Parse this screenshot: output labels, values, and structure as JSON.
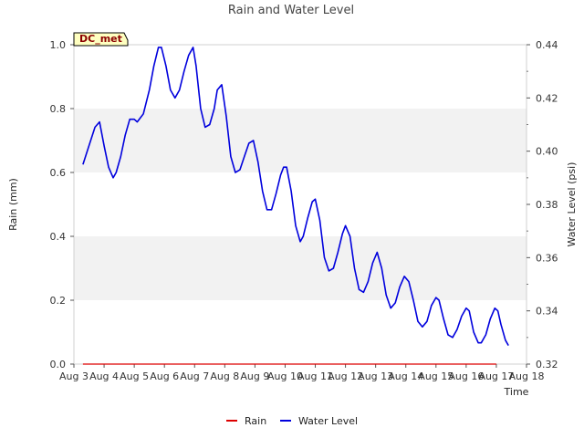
{
  "chart_data": {
    "type": "line",
    "title": "Rain and Water Level",
    "station_label": "DC_met",
    "xlabel": "Time",
    "ylabel_left": "Rain (mm)",
    "ylabel_right": "Water Level (psi)",
    "x_ticks": [
      "Aug 3",
      "Aug 4",
      "Aug 5",
      "Aug 6",
      "Aug 7",
      "Aug 8",
      "Aug 9",
      "Aug 10",
      "Aug 11",
      "Aug 12",
      "Aug 13",
      "Aug 14",
      "Aug 15",
      "Aug 16",
      "Aug 17",
      "Aug 18"
    ],
    "ylim_left": [
      0.0,
      1.0
    ],
    "ylim_right": [
      0.32,
      0.44
    ],
    "yticks_left": [
      "0.0",
      "0.2",
      "0.4",
      "0.6",
      "0.8",
      "1.0"
    ],
    "yticks_right": [
      "0.32",
      "0.34",
      "0.36",
      "0.38",
      "0.40",
      "0.42",
      "0.44"
    ],
    "legend_position": "bottom-center",
    "series": [
      {
        "name": "Rain",
        "color": "#dd0000",
        "axis": "left",
        "points": [
          [
            3.3,
            0.0
          ],
          [
            17.0,
            0.0
          ]
        ]
      },
      {
        "name": "Water Level",
        "color": "#0000dd",
        "axis": "right",
        "points": [
          [
            3.3,
            0.395
          ],
          [
            3.5,
            0.402
          ],
          [
            3.7,
            0.409
          ],
          [
            3.85,
            0.411
          ],
          [
            4.0,
            0.402
          ],
          [
            4.15,
            0.394
          ],
          [
            4.3,
            0.39
          ],
          [
            4.4,
            0.392
          ],
          [
            4.55,
            0.398
          ],
          [
            4.7,
            0.406
          ],
          [
            4.85,
            0.412
          ],
          [
            5.0,
            0.412
          ],
          [
            5.1,
            0.411
          ],
          [
            5.3,
            0.414
          ],
          [
            5.5,
            0.423
          ],
          [
            5.65,
            0.432
          ],
          [
            5.8,
            0.439
          ],
          [
            5.9,
            0.439
          ],
          [
            6.05,
            0.432
          ],
          [
            6.2,
            0.423
          ],
          [
            6.35,
            0.42
          ],
          [
            6.5,
            0.423
          ],
          [
            6.65,
            0.43
          ],
          [
            6.8,
            0.436
          ],
          [
            6.95,
            0.439
          ],
          [
            7.05,
            0.432
          ],
          [
            7.2,
            0.416
          ],
          [
            7.35,
            0.409
          ],
          [
            7.5,
            0.41
          ],
          [
            7.65,
            0.416
          ],
          [
            7.75,
            0.423
          ],
          [
            7.9,
            0.425
          ],
          [
            8.05,
            0.413
          ],
          [
            8.2,
            0.398
          ],
          [
            8.35,
            0.392
          ],
          [
            8.5,
            0.393
          ],
          [
            8.65,
            0.398
          ],
          [
            8.8,
            0.403
          ],
          [
            8.95,
            0.404
          ],
          [
            9.1,
            0.396
          ],
          [
            9.25,
            0.385
          ],
          [
            9.4,
            0.378
          ],
          [
            9.55,
            0.378
          ],
          [
            9.7,
            0.384
          ],
          [
            9.85,
            0.391
          ],
          [
            9.95,
            0.394
          ],
          [
            10.05,
            0.394
          ],
          [
            10.2,
            0.385
          ],
          [
            10.35,
            0.372
          ],
          [
            10.5,
            0.366
          ],
          [
            10.6,
            0.368
          ],
          [
            10.75,
            0.375
          ],
          [
            10.9,
            0.381
          ],
          [
            11.0,
            0.382
          ],
          [
            11.15,
            0.374
          ],
          [
            11.3,
            0.36
          ],
          [
            11.45,
            0.355
          ],
          [
            11.6,
            0.356
          ],
          [
            11.75,
            0.362
          ],
          [
            11.9,
            0.369
          ],
          [
            12.0,
            0.372
          ],
          [
            12.15,
            0.368
          ],
          [
            12.3,
            0.356
          ],
          [
            12.45,
            0.348
          ],
          [
            12.6,
            0.347
          ],
          [
            12.75,
            0.351
          ],
          [
            12.9,
            0.358
          ],
          [
            13.05,
            0.362
          ],
          [
            13.2,
            0.356
          ],
          [
            13.35,
            0.346
          ],
          [
            13.5,
            0.341
          ],
          [
            13.65,
            0.343
          ],
          [
            13.8,
            0.349
          ],
          [
            13.95,
            0.353
          ],
          [
            14.1,
            0.351
          ],
          [
            14.25,
            0.344
          ],
          [
            14.4,
            0.336
          ],
          [
            14.55,
            0.334
          ],
          [
            14.7,
            0.336
          ],
          [
            14.85,
            0.342
          ],
          [
            15.0,
            0.345
          ],
          [
            15.1,
            0.344
          ],
          [
            15.25,
            0.337
          ],
          [
            15.4,
            0.331
          ],
          [
            15.55,
            0.33
          ],
          [
            15.7,
            0.333
          ],
          [
            15.85,
            0.338
          ],
          [
            16.0,
            0.341
          ],
          [
            16.1,
            0.34
          ],
          [
            16.25,
            0.332
          ],
          [
            16.4,
            0.328
          ],
          [
            16.5,
            0.328
          ],
          [
            16.65,
            0.331
          ],
          [
            16.8,
            0.337
          ],
          [
            16.95,
            0.341
          ],
          [
            17.05,
            0.34
          ],
          [
            17.15,
            0.335
          ],
          [
            17.3,
            0.329
          ],
          [
            17.4,
            0.327
          ]
        ]
      }
    ]
  }
}
